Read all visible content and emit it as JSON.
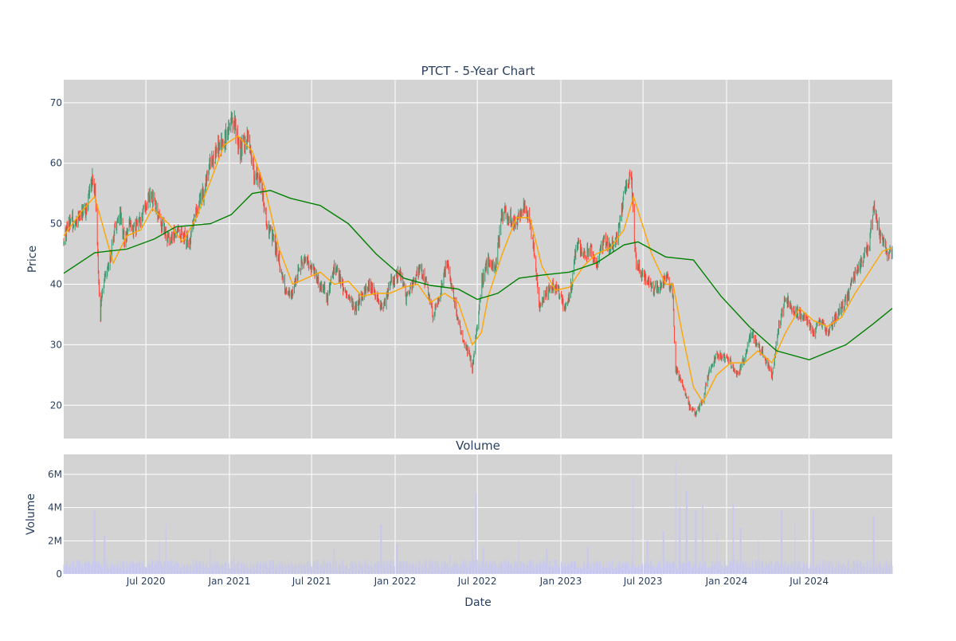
{
  "chart_data": [
    {
      "type": "candlestick",
      "title": "PTCT - 5-Year Chart",
      "xlabel": "",
      "ylabel": "Price",
      "ylim": [
        14.5,
        73.8
      ],
      "y_ticks": [
        20,
        30,
        40,
        50,
        60,
        70
      ],
      "grid": true,
      "legend": "none",
      "colors": {
        "up": "#3d9970",
        "down": "#ff4136",
        "ma_short": "#ffa500",
        "ma_long": "#008000",
        "plot_bg": "#d3d3d3",
        "grid": "#ffffff"
      },
      "x_tick_labels": [
        "Jul 2020",
        "Jan 2021",
        "Jul 2021",
        "Jan 2022",
        "Jul 2022",
        "Jan 2023",
        "Jul 2023",
        "Jan 2024",
        "Jul 2024"
      ],
      "x_tick_dates": [
        "2020-07-01",
        "2021-01-01",
        "2021-07-01",
        "2022-01-01",
        "2022-07-01",
        "2023-01-01",
        "2023-07-01",
        "2024-01-01",
        "2024-07-01"
      ],
      "x_range": [
        "2020-01-02",
        "2024-12-31"
      ],
      "close_path": [
        [
          "2020-01-02",
          47.5
        ],
        [
          "2020-01-15",
          50.5
        ],
        [
          "2020-02-05",
          51.0
        ],
        [
          "2020-02-20",
          52.5
        ],
        [
          "2020-03-05",
          57.0
        ],
        [
          "2020-03-12",
          55.0
        ],
        [
          "2020-03-18",
          42.0
        ],
        [
          "2020-03-22",
          33.0
        ],
        [
          "2020-03-26",
          39.0
        ],
        [
          "2020-04-05",
          42.0
        ],
        [
          "2020-04-15",
          45.0
        ],
        [
          "2020-04-25",
          50.0
        ],
        [
          "2020-05-05",
          52.0
        ],
        [
          "2020-05-15",
          47.0
        ],
        [
          "2020-05-25",
          50.0
        ],
        [
          "2020-06-05",
          49.0
        ],
        [
          "2020-06-20",
          51.0
        ],
        [
          "2020-07-10",
          55.0
        ],
        [
          "2020-07-25",
          52.0
        ],
        [
          "2020-08-05",
          50.0
        ],
        [
          "2020-08-20",
          47.0
        ],
        [
          "2020-09-05",
          49.0
        ],
        [
          "2020-09-20",
          48.0
        ],
        [
          "2020-10-05",
          47.0
        ],
        [
          "2020-10-20",
          52.0
        ],
        [
          "2020-11-05",
          55.0
        ],
        [
          "2020-11-20",
          60.0
        ],
        [
          "2020-12-05",
          62.0
        ],
        [
          "2020-12-20",
          64.0
        ],
        [
          "2021-01-10",
          67.0
        ],
        [
          "2021-01-25",
          62.0
        ],
        [
          "2021-02-10",
          64.0
        ],
        [
          "2021-02-25",
          58.0
        ],
        [
          "2021-03-10",
          57.0
        ],
        [
          "2021-03-25",
          50.0
        ],
        [
          "2021-04-05",
          48.0
        ],
        [
          "2021-04-20",
          44.0
        ],
        [
          "2021-05-05",
          39.0
        ],
        [
          "2021-05-20",
          38.5
        ],
        [
          "2021-06-05",
          43.0
        ],
        [
          "2021-06-20",
          44.0
        ],
        [
          "2021-07-05",
          42.0
        ],
        [
          "2021-07-20",
          40.0
        ],
        [
          "2021-08-05",
          38.0
        ],
        [
          "2021-08-20",
          43.0
        ],
        [
          "2021-09-05",
          40.0
        ],
        [
          "2021-09-20",
          38.0
        ],
        [
          "2021-10-05",
          36.0
        ],
        [
          "2021-10-20",
          38.0
        ],
        [
          "2021-11-05",
          40.0
        ],
        [
          "2021-11-20",
          38.0
        ],
        [
          "2021-12-05",
          36.0
        ],
        [
          "2021-12-20",
          40.0
        ],
        [
          "2022-01-10",
          42.0
        ],
        [
          "2022-01-25",
          38.0
        ],
        [
          "2022-02-10",
          40.0
        ],
        [
          "2022-02-25",
          43.0
        ],
        [
          "2022-03-10",
          40.0
        ],
        [
          "2022-03-25",
          35.0
        ],
        [
          "2022-04-10",
          38.0
        ],
        [
          "2022-04-25",
          44.0
        ],
        [
          "2022-05-10",
          38.0
        ],
        [
          "2022-05-25",
          32.0
        ],
        [
          "2022-06-10",
          29.0
        ],
        [
          "2022-06-20",
          26.0
        ],
        [
          "2022-07-01",
          33.0
        ],
        [
          "2022-07-10",
          40.0
        ],
        [
          "2022-07-25",
          44.0
        ],
        [
          "2022-08-10",
          43.0
        ],
        [
          "2022-08-25",
          52.0
        ],
        [
          "2022-09-10",
          51.0
        ],
        [
          "2022-09-25",
          50.0
        ],
        [
          "2022-10-10",
          53.0
        ],
        [
          "2022-10-25",
          50.0
        ],
        [
          "2022-11-05",
          44.0
        ],
        [
          "2022-11-15",
          36.0
        ],
        [
          "2022-11-25",
          38.0
        ],
        [
          "2022-12-10",
          40.0
        ],
        [
          "2022-12-25",
          39.0
        ],
        [
          "2023-01-10",
          36.0
        ],
        [
          "2023-01-25",
          40.0
        ],
        [
          "2023-02-05",
          47.0
        ],
        [
          "2023-02-20",
          45.0
        ],
        [
          "2023-03-05",
          46.0
        ],
        [
          "2023-03-20",
          43.0
        ],
        [
          "2023-04-05",
          47.0
        ],
        [
          "2023-04-20",
          46.0
        ],
        [
          "2023-05-05",
          48.0
        ],
        [
          "2023-05-20",
          55.0
        ],
        [
          "2023-06-05",
          58.0
        ],
        [
          "2023-06-15",
          44.0
        ],
        [
          "2023-06-25",
          42.0
        ],
        [
          "2023-07-10",
          41.0
        ],
        [
          "2023-07-25",
          39.0
        ],
        [
          "2023-08-10",
          40.0
        ],
        [
          "2023-08-25",
          41.0
        ],
        [
          "2023-09-05",
          38.0
        ],
        [
          "2023-09-10",
          26.0
        ],
        [
          "2023-09-25",
          24.0
        ],
        [
          "2023-10-10",
          20.0
        ],
        [
          "2023-10-25",
          18.5
        ],
        [
          "2023-11-10",
          21.0
        ],
        [
          "2023-11-25",
          26.0
        ],
        [
          "2023-12-10",
          28.0
        ],
        [
          "2023-12-25",
          28.0
        ],
        [
          "2024-01-10",
          27.0
        ],
        [
          "2024-01-25",
          25.0
        ],
        [
          "2024-02-10",
          28.0
        ],
        [
          "2024-02-25",
          32.0
        ],
        [
          "2024-03-10",
          30.0
        ],
        [
          "2024-03-25",
          28.0
        ],
        [
          "2024-04-10",
          25.0
        ],
        [
          "2024-04-25",
          33.0
        ],
        [
          "2024-05-10",
          38.0
        ],
        [
          "2024-05-25",
          36.0
        ],
        [
          "2024-06-10",
          35.0
        ],
        [
          "2024-06-25",
          34.0
        ],
        [
          "2024-07-10",
          32.0
        ],
        [
          "2024-07-25",
          34.0
        ],
        [
          "2024-08-10",
          32.0
        ],
        [
          "2024-08-25",
          34.0
        ],
        [
          "2024-09-10",
          36.0
        ],
        [
          "2024-09-25",
          38.0
        ],
        [
          "2024-10-10",
          42.0
        ],
        [
          "2024-10-25",
          44.0
        ],
        [
          "2024-11-10",
          46.0
        ],
        [
          "2024-11-20",
          53.0
        ],
        [
          "2024-12-05",
          48.0
        ],
        [
          "2024-12-20",
          45.0
        ],
        [
          "2024-12-31",
          45.5
        ]
      ],
      "series": [
        {
          "values": [
            [
              "2020-01-02",
              48.0
            ],
            [
              "2020-02-10",
              52.0
            ],
            [
              "2020-03-10",
              54.5
            ],
            [
              "2020-04-20",
              43.5
            ],
            [
              "2020-05-20",
              48.0
            ],
            [
              "2020-06-20",
              49.0
            ],
            [
              "2020-07-15",
              52.5
            ],
            [
              "2020-08-20",
              50.0
            ],
            [
              "2020-09-20",
              47.0
            ],
            [
              "2020-10-20",
              51.0
            ],
            [
              "2020-11-20",
              57.0
            ],
            [
              "2020-12-20",
              63.0
            ],
            [
              "2021-01-20",
              64.5
            ],
            [
              "2021-02-20",
              62.0
            ],
            [
              "2021-03-20",
              56.0
            ],
            [
              "2021-04-20",
              46.0
            ],
            [
              "2021-05-20",
              40.0
            ],
            [
              "2021-06-20",
              41.0
            ],
            [
              "2021-07-20",
              42.0
            ],
            [
              "2021-08-20",
              40.0
            ],
            [
              "2021-09-20",
              40.5
            ],
            [
              "2021-10-20",
              38.0
            ],
            [
              "2021-11-20",
              38.5
            ],
            [
              "2021-12-20",
              38.5
            ],
            [
              "2022-01-20",
              39.5
            ],
            [
              "2022-02-20",
              40.0
            ],
            [
              "2022-03-20",
              37.0
            ],
            [
              "2022-04-20",
              38.5
            ],
            [
              "2022-05-20",
              37.0
            ],
            [
              "2022-06-20",
              30.0
            ],
            [
              "2022-07-10",
              32.0
            ],
            [
              "2022-07-25",
              38.0
            ],
            [
              "2022-08-25",
              45.0
            ],
            [
              "2022-09-25",
              51.0
            ],
            [
              "2022-10-25",
              51.0
            ],
            [
              "2022-11-20",
              43.0
            ],
            [
              "2022-12-20",
              39.0
            ],
            [
              "2023-01-20",
              39.5
            ],
            [
              "2023-02-20",
              43.0
            ],
            [
              "2023-03-20",
              45.0
            ],
            [
              "2023-04-20",
              46.0
            ],
            [
              "2023-05-20",
              49.0
            ],
            [
              "2023-06-10",
              54.5
            ],
            [
              "2023-07-20",
              45.0
            ],
            [
              "2023-08-20",
              40.0
            ],
            [
              "2023-09-05",
              40.0
            ],
            [
              "2023-09-25",
              32.0
            ],
            [
              "2023-10-20",
              23.0
            ],
            [
              "2023-11-10",
              20.5
            ],
            [
              "2023-12-10",
              25.0
            ],
            [
              "2024-01-10",
              27.0
            ],
            [
              "2024-02-10",
              27.0
            ],
            [
              "2024-03-10",
              29.0
            ],
            [
              "2024-04-10",
              27.0
            ],
            [
              "2024-05-10",
              32.0
            ],
            [
              "2024-06-10",
              36.0
            ],
            [
              "2024-07-10",
              34.0
            ],
            [
              "2024-08-10",
              33.0
            ],
            [
              "2024-09-10",
              34.5
            ],
            [
              "2024-10-10",
              38.5
            ],
            [
              "2024-11-10",
              42.0
            ],
            [
              "2024-12-10",
              45.5
            ],
            [
              "2024-12-31",
              46.0
            ]
          ]
        },
        {
          "values": [
            [
              "2020-01-02",
              41.8
            ],
            [
              "2020-03-10",
              45.2
            ],
            [
              "2020-05-20",
              45.8
            ],
            [
              "2020-07-20",
              47.5
            ],
            [
              "2020-09-05",
              49.5
            ],
            [
              "2020-11-20",
              50.0
            ],
            [
              "2021-01-05",
              51.5
            ],
            [
              "2021-02-20",
              55.0
            ],
            [
              "2021-04-01",
              55.5
            ],
            [
              "2021-05-15",
              54.2
            ],
            [
              "2021-07-20",
              53.0
            ],
            [
              "2021-09-20",
              50.0
            ],
            [
              "2021-11-20",
              45.0
            ],
            [
              "2022-01-20",
              41.0
            ],
            [
              "2022-03-20",
              39.8
            ],
            [
              "2022-05-20",
              39.2
            ],
            [
              "2022-07-01",
              37.5
            ],
            [
              "2022-08-15",
              38.5
            ],
            [
              "2022-10-01",
              41.0
            ],
            [
              "2022-11-20",
              41.5
            ],
            [
              "2023-01-20",
              42.0
            ],
            [
              "2023-03-20",
              43.5
            ],
            [
              "2023-05-20",
              46.5
            ],
            [
              "2023-06-20",
              47.0
            ],
            [
              "2023-08-20",
              44.5
            ],
            [
              "2023-10-20",
              44.0
            ],
            [
              "2023-12-20",
              38.0
            ],
            [
              "2024-02-20",
              33.0
            ],
            [
              "2024-04-20",
              29.0
            ],
            [
              "2024-07-01",
              27.5
            ],
            [
              "2024-09-20",
              30.0
            ],
            [
              "2024-11-20",
              33.5
            ],
            [
              "2024-12-31",
              36.0
            ]
          ]
        }
      ]
    },
    {
      "type": "bar",
      "title": "Volume",
      "xlabel": "Date",
      "ylabel": "Volume",
      "ylim": [
        0,
        7200000
      ],
      "y_ticks": [
        0,
        2000000,
        4000000,
        6000000
      ],
      "y_tick_labels": [
        "0",
        "2M",
        "4M",
        "6M"
      ],
      "x_tick_labels": [
        "Jul 2020",
        "Jan 2021",
        "Jul 2021",
        "Jan 2022",
        "Jul 2022",
        "Jan 2023",
        "Jul 2023",
        "Jan 2024",
        "Jul 2024"
      ],
      "grid": true,
      "legend": "none",
      "colors": {
        "bar": "#c8c8ee",
        "plot_bg": "#d3d3d3",
        "grid": "#ffffff"
      },
      "baseline_level": 700000,
      "spikes": [
        [
          "2020-03-10",
          3800000
        ],
        [
          "2020-04-01",
          2300000
        ],
        [
          "2020-08-01",
          2000000
        ],
        [
          "2020-08-15",
          3000000
        ],
        [
          "2020-11-20",
          1500000
        ],
        [
          "2021-01-10",
          1100000
        ],
        [
          "2021-08-20",
          1600000
        ],
        [
          "2021-12-01",
          3000000
        ],
        [
          "2022-01-05",
          1800000
        ],
        [
          "2022-05-01",
          1200000
        ],
        [
          "2022-06-20",
          1500000
        ],
        [
          "2022-06-28",
          4900000
        ],
        [
          "2022-07-15",
          1600000
        ],
        [
          "2022-10-01",
          2000000
        ],
        [
          "2022-12-01",
          1500000
        ],
        [
          "2023-03-01",
          1600000
        ],
        [
          "2023-06-10",
          5800000
        ],
        [
          "2023-07-10",
          2000000
        ],
        [
          "2023-08-15",
          2600000
        ],
        [
          "2023-09-10",
          6800000
        ],
        [
          "2023-09-20",
          4000000
        ],
        [
          "2023-10-05",
          5000000
        ],
        [
          "2023-10-25",
          3800000
        ],
        [
          "2023-11-10",
          4200000
        ],
        [
          "2023-12-10",
          2500000
        ],
        [
          "2024-01-15",
          4200000
        ],
        [
          "2024-02-01",
          2800000
        ],
        [
          "2024-03-10",
          2000000
        ],
        [
          "2024-05-01",
          3800000
        ],
        [
          "2024-06-01",
          3000000
        ],
        [
          "2024-07-10",
          3800000
        ],
        [
          "2024-11-20",
          3500000
        ]
      ]
    }
  ]
}
